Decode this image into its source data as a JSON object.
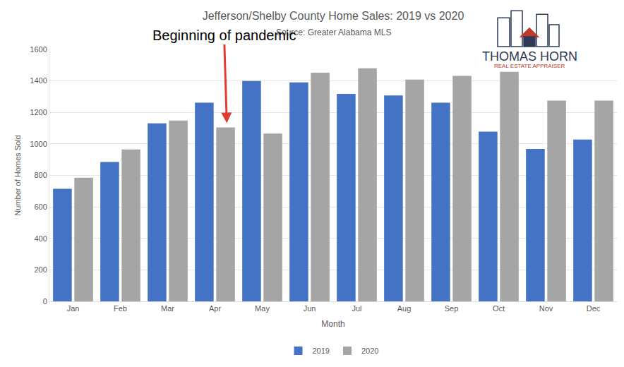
{
  "chart_data": {
    "type": "bar",
    "title": "Jefferson/Shelby County Home Sales: 2019 vs 2020",
    "subtitle": "Source: Greater Alabama MLS",
    "x_label": "Month",
    "y_label": "Number of Homes Sold",
    "annotations": [
      "Beginning of pandemic",
      "THOMAS HORN",
      "REAL ESTATE APPRAISER"
    ],
    "categories": [
      "Jan",
      "Feb",
      "Mar",
      "Apr",
      "May",
      "Jun",
      "Jul",
      "Aug",
      "Sep",
      "Oct",
      "Nov",
      "Dec"
    ],
    "series": [
      {
        "name": "2019",
        "color": "#4472c4",
        "values": [
          715,
          885,
          1130,
          1262,
          1400,
          1390,
          1318,
          1308,
          1262,
          1078,
          968,
          1028
        ]
      },
      {
        "name": "2020",
        "color": "#a5a5a5",
        "values": [
          785,
          965,
          1148,
          1105,
          1065,
          1452,
          1480,
          1408,
          1432,
          1458,
          1275,
          1275
        ]
      }
    ],
    "ylim": [
      0,
      1600
    ],
    "yticks": [
      0,
      200,
      400,
      600,
      800,
      1000,
      1200,
      1400,
      1600
    ],
    "grid": true,
    "legend": "bottom"
  }
}
